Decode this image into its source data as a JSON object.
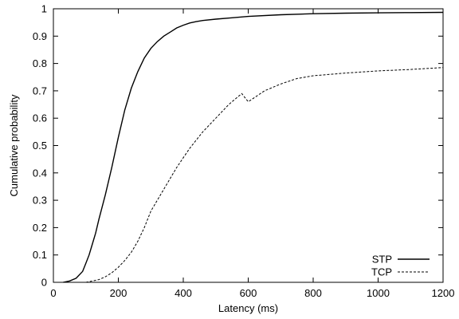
{
  "chart_data": {
    "type": "line",
    "xlabel": "Latency (ms)",
    "ylabel": "Cumulative probability",
    "xlim": [
      0,
      1200
    ],
    "ylim": [
      0,
      1
    ],
    "xticks": [
      0,
      200,
      400,
      600,
      800,
      1000,
      1200
    ],
    "xtick_labels": [
      "0",
      "200",
      "400",
      "600",
      "800",
      "1000",
      "1200"
    ],
    "yticks": [
      0,
      0.1,
      0.2,
      0.3,
      0.4,
      0.5,
      0.6,
      0.7,
      0.8,
      0.9,
      1
    ],
    "ytick_labels": [
      "0",
      "0.1",
      "0.2",
      "0.3",
      "0.4",
      "0.5",
      "0.6",
      "0.7",
      "0.8",
      "0.9",
      "1"
    ],
    "grid": false,
    "legend_position": "bottom-right",
    "series": [
      {
        "name": "STP",
        "style": "solid",
        "color": "#000000",
        "x": [
          30,
          50,
          70,
          90,
          100,
          110,
          120,
          130,
          140,
          160,
          180,
          200,
          220,
          240,
          260,
          280,
          300,
          320,
          340,
          360,
          380,
          400,
          420,
          440,
          460,
          500,
          550,
          600,
          700,
          800,
          900,
          1000,
          1100,
          1200
        ],
        "y": [
          0,
          0.005,
          0.015,
          0.04,
          0.07,
          0.1,
          0.14,
          0.18,
          0.23,
          0.32,
          0.42,
          0.53,
          0.63,
          0.71,
          0.77,
          0.82,
          0.855,
          0.88,
          0.9,
          0.915,
          0.93,
          0.94,
          0.948,
          0.953,
          0.957,
          0.962,
          0.967,
          0.972,
          0.978,
          0.982,
          0.984,
          0.985,
          0.986,
          0.987
        ]
      },
      {
        "name": "TCP",
        "style": "dashed",
        "color": "#000000",
        "x": [
          100,
          120,
          140,
          160,
          180,
          200,
          220,
          240,
          260,
          280,
          300,
          340,
          380,
          420,
          460,
          500,
          540,
          580,
          600,
          650,
          700,
          750,
          800,
          900,
          1000,
          1100,
          1200
        ],
        "y": [
          0,
          0.005,
          0.01,
          0.02,
          0.035,
          0.055,
          0.08,
          0.11,
          0.15,
          0.2,
          0.26,
          0.34,
          0.42,
          0.49,
          0.55,
          0.6,
          0.65,
          0.69,
          0.66,
          0.7,
          0.725,
          0.745,
          0.755,
          0.765,
          0.773,
          0.778,
          0.785
        ]
      }
    ]
  }
}
